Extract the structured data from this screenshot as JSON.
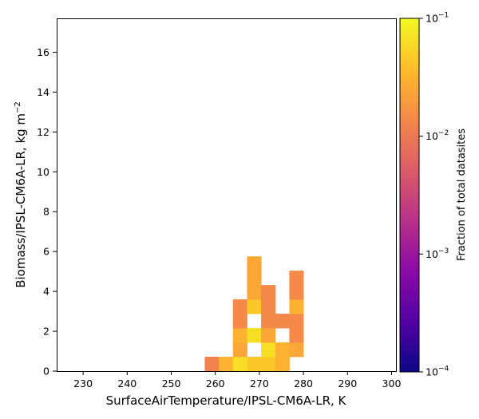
{
  "chart_data": {
    "type": "heatmap",
    "xlabel": "SurfaceAirTemperature/IPSL-CM6A-LR,  K",
    "ylabel_main": "Biomass/IPSL-CM6A-LR,  kg m",
    "ylabel_sup": "−2",
    "xlim": [
      224,
      301
    ],
    "ylim": [
      0,
      17.7
    ],
    "x_ticks": [
      230,
      240,
      250,
      260,
      270,
      280,
      290,
      300
    ],
    "y_ticks": [
      0,
      2,
      4,
      6,
      8,
      10,
      12,
      14,
      16
    ],
    "bin_width_x": 3.2,
    "bin_height_y": 0.72,
    "colorbar": {
      "label": "Fraction of total datasites",
      "scale": "log",
      "range": [
        0.0001,
        0.1
      ],
      "ticks": [
        {
          "value": 0.1,
          "base": "10",
          "exp": "−1"
        },
        {
          "value": 0.01,
          "base": "10",
          "exp": "−2"
        },
        {
          "value": 0.001,
          "base": "10",
          "exp": "−3"
        },
        {
          "value": 0.0001,
          "base": "10",
          "exp": "−4"
        }
      ],
      "colormap": "plasma"
    },
    "cells": [
      {
        "x": 257.6,
        "y": 0.0,
        "value": 0.012
      },
      {
        "x": 260.8,
        "y": 0.0,
        "value": 0.03
      },
      {
        "x": 264.0,
        "y": 0.0,
        "value": 0.065
      },
      {
        "x": 267.2,
        "y": 0.0,
        "value": 0.045
      },
      {
        "x": 270.4,
        "y": 0.0,
        "value": 0.045
      },
      {
        "x": 273.6,
        "y": 0.0,
        "value": 0.03
      },
      {
        "x": 264.0,
        "y": 0.72,
        "value": 0.025
      },
      {
        "x": 270.4,
        "y": 0.72,
        "value": 0.065
      },
      {
        "x": 273.6,
        "y": 0.72,
        "value": 0.03
      },
      {
        "x": 276.8,
        "y": 0.72,
        "value": 0.025
      },
      {
        "x": 264.0,
        "y": 1.44,
        "value": 0.03
      },
      {
        "x": 267.2,
        "y": 1.44,
        "value": 0.065
      },
      {
        "x": 270.4,
        "y": 1.44,
        "value": 0.025
      },
      {
        "x": 276.8,
        "y": 1.44,
        "value": 0.014
      },
      {
        "x": 264.0,
        "y": 2.16,
        "value": 0.014
      },
      {
        "x": 270.4,
        "y": 2.16,
        "value": 0.014
      },
      {
        "x": 273.6,
        "y": 2.16,
        "value": 0.014
      },
      {
        "x": 276.8,
        "y": 2.16,
        "value": 0.014
      },
      {
        "x": 264.0,
        "y": 2.88,
        "value": 0.014
      },
      {
        "x": 267.2,
        "y": 2.88,
        "value": 0.045
      },
      {
        "x": 270.4,
        "y": 2.88,
        "value": 0.014
      },
      {
        "x": 276.8,
        "y": 2.88,
        "value": 0.03
      },
      {
        "x": 267.2,
        "y": 3.6,
        "value": 0.025
      },
      {
        "x": 270.4,
        "y": 3.6,
        "value": 0.014
      },
      {
        "x": 276.8,
        "y": 3.6,
        "value": 0.014
      },
      {
        "x": 267.2,
        "y": 4.32,
        "value": 0.025
      },
      {
        "x": 276.8,
        "y": 4.32,
        "value": 0.014
      },
      {
        "x": 267.2,
        "y": 5.04,
        "value": 0.025
      }
    ]
  }
}
